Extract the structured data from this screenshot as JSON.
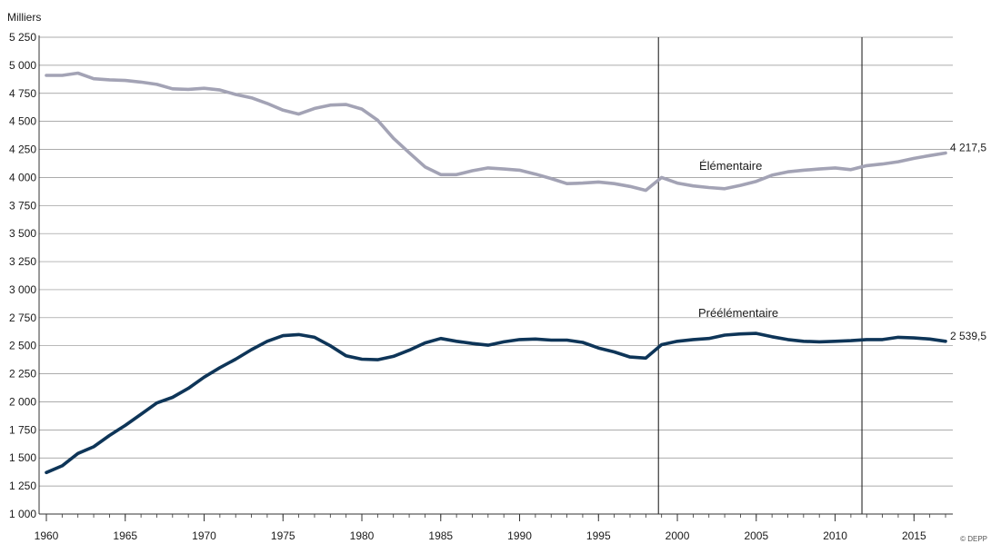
{
  "chart_data": {
    "type": "line",
    "ylabel": "Milliers",
    "ylim": [
      1000,
      5250
    ],
    "xlim": [
      1960,
      2017
    ],
    "yticks": [
      1000,
      1250,
      1500,
      1750,
      2000,
      2250,
      2500,
      2750,
      3000,
      3250,
      3500,
      3750,
      4000,
      4250,
      4500,
      4750,
      5000,
      5250
    ],
    "ytick_labels": [
      "1 000",
      "1 250",
      "1 500",
      "1 750",
      "2 000",
      "2 250",
      "2 500",
      "2 750",
      "3 000",
      "3 250",
      "3 500",
      "3 750",
      "4 000",
      "4 250",
      "4 500",
      "4 750",
      "5 000",
      "5 250"
    ],
    "xticks": [
      1960,
      1965,
      1970,
      1975,
      1980,
      1985,
      1990,
      1995,
      2000,
      2005,
      2010,
      2015
    ],
    "xtick_labels": [
      "1960",
      "1965",
      "1970",
      "1975",
      "1980",
      "1985",
      "1990",
      "1995",
      "2000",
      "2005",
      "2010",
      "2015"
    ],
    "grid": "horizontal",
    "vertical_markers": [
      1998.8,
      2011.7
    ],
    "series": [
      {
        "name": "Élémentaire",
        "color": "#a3a3b5",
        "end_label": "4 217,5",
        "x": [
          1960,
          1961,
          1962,
          1963,
          1964,
          1965,
          1966,
          1967,
          1968,
          1969,
          1970,
          1971,
          1972,
          1973,
          1974,
          1975,
          1976,
          1977,
          1978,
          1979,
          1980,
          1981,
          1982,
          1983,
          1984,
          1985,
          1986,
          1987,
          1988,
          1989,
          1990,
          1991,
          1992,
          1993,
          1994,
          1995,
          1996,
          1997,
          1998,
          1999,
          2000,
          2001,
          2002,
          2003,
          2004,
          2005,
          2006,
          2007,
          2008,
          2009,
          2010,
          2011,
          2012,
          2013,
          2014,
          2015,
          2016,
          2017
        ],
        "values": [
          4910,
          4910,
          4930,
          4880,
          4870,
          4865,
          4850,
          4830,
          4790,
          4785,
          4795,
          4780,
          4740,
          4710,
          4660,
          4600,
          4565,
          4615,
          4645,
          4650,
          4610,
          4510,
          4350,
          4220,
          4095,
          4025,
          4025,
          4060,
          4085,
          4075,
          4065,
          4030,
          3990,
          3945,
          3950,
          3960,
          3945,
          3920,
          3885,
          4000,
          3950,
          3925,
          3910,
          3900,
          3930,
          3965,
          4020,
          4050,
          4065,
          4075,
          4085,
          4070,
          4105,
          4120,
          4140,
          4170,
          4195,
          4217.5
        ]
      },
      {
        "name": "Préélémentaire",
        "color": "#0e3558",
        "end_label": "2 539,5",
        "x": [
          1960,
          1961,
          1962,
          1963,
          1964,
          1965,
          1966,
          1967,
          1968,
          1969,
          1970,
          1971,
          1972,
          1973,
          1974,
          1975,
          1976,
          1977,
          1978,
          1979,
          1980,
          1981,
          1982,
          1983,
          1984,
          1985,
          1986,
          1987,
          1988,
          1989,
          1990,
          1991,
          1992,
          1993,
          1994,
          1995,
          1996,
          1997,
          1998,
          1999,
          2000,
          2001,
          2002,
          2003,
          2004,
          2005,
          2006,
          2007,
          2008,
          2009,
          2010,
          2011,
          2012,
          2013,
          2014,
          2015,
          2016,
          2017
        ],
        "values": [
          1370,
          1430,
          1540,
          1600,
          1700,
          1790,
          1890,
          1990,
          2040,
          2120,
          2220,
          2305,
          2380,
          2465,
          2540,
          2590,
          2600,
          2575,
          2500,
          2410,
          2380,
          2375,
          2405,
          2460,
          2525,
          2565,
          2540,
          2520,
          2505,
          2535,
          2555,
          2560,
          2550,
          2550,
          2530,
          2480,
          2445,
          2400,
          2390,
          2510,
          2540,
          2555,
          2565,
          2595,
          2605,
          2610,
          2580,
          2555,
          2540,
          2535,
          2540,
          2545,
          2555,
          2555,
          2575,
          2570,
          2560,
          2539.5
        ]
      }
    ],
    "credit": "© DEPP"
  }
}
